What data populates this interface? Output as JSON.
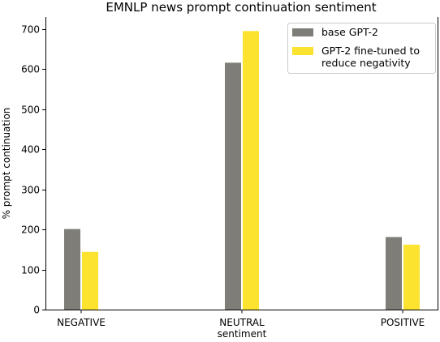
{
  "chart_data": {
    "type": "bar",
    "title": "EMNLP news prompt continuation sentiment",
    "xlabel": "sentiment",
    "ylabel": "% prompt continuation",
    "categories": [
      "NEGATIVE",
      "NEUTRAL",
      "POSITIVE"
    ],
    "series": [
      {
        "name": "base GPT-2",
        "values": [
          201,
          616,
          181
        ],
        "color": "#7f7d78"
      },
      {
        "name": "GPT-2 fine-tuned to\nreduce negativity",
        "values": [
          144,
          695,
          162
        ],
        "color": "#fce330"
      }
    ],
    "ylim": [
      0,
      730
    ],
    "yticks": [
      0,
      100,
      200,
      300,
      400,
      500,
      600,
      700
    ],
    "grid": false,
    "legend_position": "top-right"
  }
}
